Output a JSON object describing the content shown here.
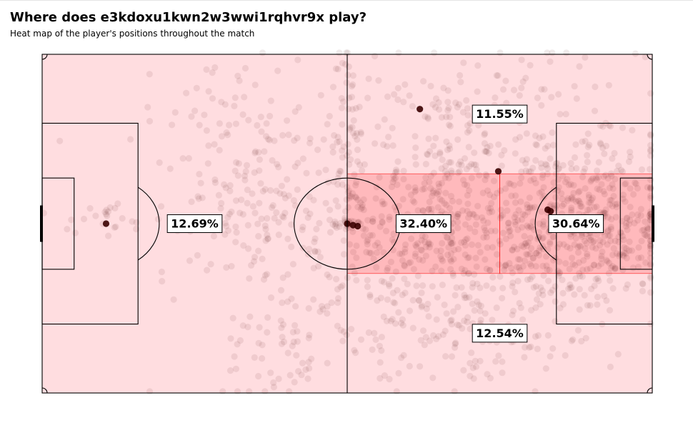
{
  "header": {
    "title": "Where does e3kdoxu1kwn2w3wwi1rqhvr9x play?",
    "subtitle": "Heat map of the player's positions throughout the match"
  },
  "colors": {
    "pitch_background": "#ffdde0",
    "zone_highlight": "#ff0000",
    "position_dots": "#3a0000",
    "lines": "#000000"
  },
  "chart_data": {
    "type": "heatmap",
    "title": "Where does e3kdoxu1kwn2w3wwi1rqhvr9x play?",
    "subtitle": "Heat map of the player's positions throughout the match",
    "pitch": {
      "length": 105,
      "width": 68
    },
    "zones": [
      {
        "zone": "center-left",
        "share_pct": 12.69,
        "label": "12.69%",
        "x_range": [
          0,
          52.5
        ],
        "y_range": [
          24.0,
          44.0
        ],
        "highlighted": false
      },
      {
        "zone": "center-middle",
        "share_pct": 32.4,
        "label": "32.40%",
        "x_range": [
          52.5,
          78.75
        ],
        "y_range": [
          24.0,
          44.0
        ],
        "highlighted": true
      },
      {
        "zone": "center-right",
        "share_pct": 30.64,
        "label": "30.64%",
        "x_range": [
          78.75,
          105
        ],
        "y_range": [
          24.0,
          44.0
        ],
        "highlighted": true
      },
      {
        "zone": "top",
        "share_pct": 11.55,
        "label": "11.55%",
        "x_range": [
          52.5,
          105
        ],
        "y_range": [
          44.0,
          68.0
        ],
        "highlighted": false
      },
      {
        "zone": "bottom",
        "share_pct": 12.54,
        "label": "12.54%",
        "x_range": [
          52.5,
          105
        ],
        "y_range": [
          0,
          24.0
        ],
        "highlighted": false
      }
    ],
    "position_clusters": [
      {
        "cx": 70,
        "cy": 34,
        "sx": 13,
        "sy": 9,
        "n": 520
      },
      {
        "cx": 95,
        "cy": 34,
        "sx": 7,
        "sy": 7,
        "n": 380
      },
      {
        "cx": 78,
        "cy": 53,
        "sx": 13,
        "sy": 8,
        "n": 190
      },
      {
        "cx": 72,
        "cy": 14,
        "sx": 13,
        "sy": 7,
        "n": 190
      },
      {
        "cx": 38,
        "cy": 37,
        "sx": 9,
        "sy": 9,
        "n": 150
      },
      {
        "cx": 42,
        "cy": 11,
        "sx": 6,
        "sy": 6,
        "n": 60
      },
      {
        "cx": 32,
        "cy": 55,
        "sx": 7,
        "sy": 5,
        "n": 50
      },
      {
        "cx": 10,
        "cy": 35,
        "sx": 6,
        "sy": 2,
        "n": 25
      },
      {
        "cx": 52.5,
        "cy": 34,
        "sx": 0.8,
        "sy": 0.6,
        "n": 22
      },
      {
        "cx": 52.5,
        "cy": 55,
        "sx": 1.5,
        "sy": 9,
        "n": 50
      }
    ],
    "notable_points": [
      {
        "x": 11,
        "y": 34
      },
      {
        "x": 52.5,
        "y": 34
      },
      {
        "x": 53.5,
        "y": 33.7
      },
      {
        "x": 54.3,
        "y": 33.5
      },
      {
        "x": 87,
        "y": 36.8
      },
      {
        "x": 87.5,
        "y": 36.5
      },
      {
        "x": 78.5,
        "y": 44.5
      },
      {
        "x": 65,
        "y": 57
      }
    ]
  }
}
